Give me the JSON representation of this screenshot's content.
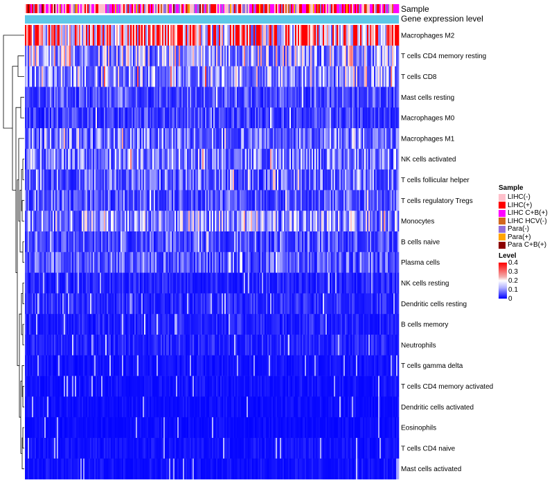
{
  "chart_data": {
    "type": "heatmap",
    "title": "",
    "column_annotations": [
      {
        "name": "Sample"
      },
      {
        "name": "Gene expression level"
      }
    ],
    "row_labels": [
      "Macrophages M2",
      "T cells CD4 memory resting",
      "T cells CD8",
      "Mast cells resting",
      "Macrophages M0",
      "Macrophages M1",
      "NK cells activated",
      "T cells follicular helper",
      "T cells regulatory  Tregs",
      "Monocytes",
      "B cells naive",
      "Plasma cells",
      "NK cells resting",
      "Dendritic cells resting",
      "B cells memory",
      "Neutrophils",
      "T cells gamma delta",
      "T cells CD4 memory activated",
      "Dendritic cells activated",
      "Eosinophils",
      "T cells CD4 naive",
      "Mast cells activated"
    ],
    "row_mean_level": [
      0.3,
      0.14,
      0.12,
      0.06,
      0.05,
      0.09,
      0.1,
      0.08,
      0.07,
      0.12,
      0.06,
      0.07,
      0.03,
      0.035,
      0.03,
      0.03,
      0.015,
      0.015,
      0.012,
      0.01,
      0.015,
      0.015
    ],
    "color_scale": {
      "name": "Level",
      "range": [
        0,
        0.4
      ],
      "ticks": [
        "0.4",
        "0.3",
        "0.2",
        "0.1",
        "0"
      ],
      "low_color": "#0000ff",
      "mid_color": "#ffffff",
      "high_color": "#ff0000"
    },
    "gene_expression_color": "#5ec8e8",
    "sample_legend": [
      {
        "label": "LIHC(-)",
        "color": "#ffc0cb"
      },
      {
        "label": "LIHC(+)",
        "color": "#ff0000"
      },
      {
        "label": "LIHC C+B(+)",
        "color": "#ff00ff"
      },
      {
        "label": "LIHC HCV(-)",
        "color": "#d2691e"
      },
      {
        "label": "Para(-)",
        "color": "#9370db"
      },
      {
        "label": "Para(+)",
        "color": "#ffa500"
      },
      {
        "label": "Para C+B(+)",
        "color": "#8b0000"
      }
    ],
    "legend_titles": {
      "sample": "Sample",
      "level": "Level"
    }
  }
}
